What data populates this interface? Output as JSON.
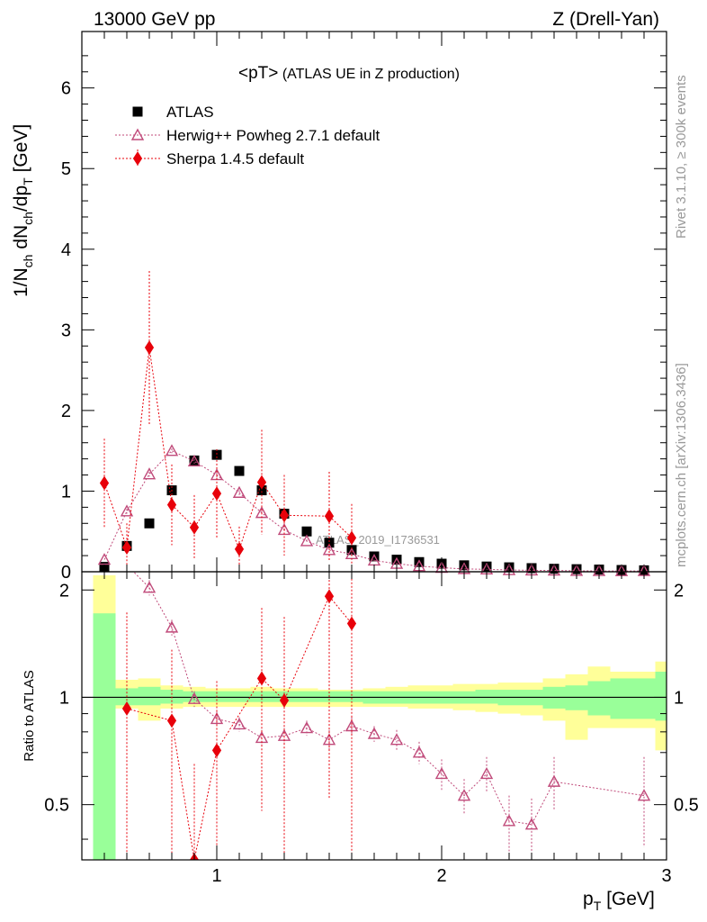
{
  "header": {
    "left": "13000 GeV pp",
    "right": "Z (Drell-Yan)"
  },
  "side_texts": {
    "rivet": "Rivet 3.1.10, ≥ 300k events",
    "mcplots": "mcplots.cern.ch [arXiv:1306.3436]"
  },
  "watermark": "ATLAS_2019_I1736531",
  "chart_data": [
    {
      "type": "scatter",
      "panel": "main",
      "title_main": "<pT>",
      "title_sub": "(ATLAS UE in Z production)",
      "ylabel": "1/Nch dNch/dpT [GeV]",
      "ylim": [
        0,
        6.7
      ],
      "xlim": [
        0.4,
        3.0
      ],
      "log_y": false,
      "grid": false,
      "legend_position": "top-left",
      "y_ticks": [
        0,
        1,
        2,
        3,
        4,
        5,
        6
      ],
      "y_tick_labels": [
        "0",
        "1",
        "2",
        "3",
        "4",
        "5",
        "6"
      ],
      "series": [
        {
          "name": "ATLAS",
          "color": "#000000",
          "marker": "square",
          "x": [
            0.5,
            0.6,
            0.7,
            0.8,
            0.9,
            1.0,
            1.1,
            1.2,
            1.3,
            1.4,
            1.5,
            1.6,
            1.7,
            1.8,
            1.9,
            2.0,
            2.1,
            2.2,
            2.3,
            2.4,
            2.5,
            2.6,
            2.7,
            2.8,
            2.9
          ],
          "y": [
            0.06,
            0.32,
            0.6,
            1.01,
            1.38,
            1.45,
            1.25,
            1.01,
            0.72,
            0.5,
            0.36,
            0.27,
            0.19,
            0.15,
            0.12,
            0.1,
            0.08,
            0.065,
            0.055,
            0.045,
            0.037,
            0.032,
            0.027,
            0.022,
            0.018
          ]
        },
        {
          "name": "Herwig++ Powheg 2.7.1 default",
          "color": "#c04a7a",
          "marker": "open-triangle",
          "x": [
            0.5,
            0.6,
            0.7,
            0.8,
            0.9,
            1.0,
            1.1,
            1.2,
            1.3,
            1.4,
            1.5,
            1.6,
            1.7,
            1.8,
            1.9,
            2.0,
            2.1,
            2.2,
            2.3,
            2.4,
            2.5,
            2.6,
            2.7,
            2.8,
            2.9
          ],
          "y": [
            0.15,
            0.75,
            1.21,
            1.5,
            1.37,
            1.2,
            0.98,
            0.73,
            0.52,
            0.38,
            0.27,
            0.22,
            0.14,
            0.1,
            0.07,
            0.05,
            0.035,
            0.03,
            0.022,
            0.018,
            0.016,
            0.012,
            0.01,
            0.009,
            0.01
          ],
          "err": [
            0,
            0.03,
            0.03,
            0.03,
            0.03,
            0.03,
            0.03,
            0.02,
            0.02,
            0.02,
            0.02,
            0.01,
            0.01,
            0.01,
            0.01,
            0.01,
            0.005,
            0.005,
            0.005,
            0.005,
            0.005,
            0.005,
            0.005,
            0.005,
            0.005
          ]
        },
        {
          "name": "Sherpa 1.4.5 default",
          "color": "#e8000a",
          "marker": "diamond",
          "x": [
            0.5,
            0.6,
            0.7,
            0.8,
            0.9,
            1.0,
            1.1,
            1.2,
            1.3,
            1.5,
            1.6
          ],
          "y": [
            1.1,
            0.3,
            2.78,
            0.83,
            0.55,
            0.97,
            0.28,
            1.11,
            0.7,
            0.69,
            0.42
          ],
          "err": [
            0.55,
            0.3,
            0.95,
            0.5,
            0.4,
            0.55,
            0.28,
            0.65,
            0.5,
            0.55,
            0.42
          ]
        }
      ]
    },
    {
      "type": "scatter",
      "panel": "ratio",
      "ylabel": "Ratio to ATLAS",
      "ylim": [
        0.35,
        2.25
      ],
      "xlim": [
        0.4,
        3.0
      ],
      "log_y": true,
      "xlabel": "pT [GeV]",
      "x_ticks": [
        1,
        2,
        3
      ],
      "x_tick_labels": [
        "1",
        "2",
        "3"
      ],
      "y_ticks": [
        0.5,
        1,
        2
      ],
      "y_tick_labels": [
        "0.5",
        "1",
        "2"
      ],
      "reference_line": 1,
      "bands": {
        "x_edges": [
          0.45,
          0.55,
          0.65,
          0.75,
          0.85,
          0.95,
          1.05,
          1.15,
          1.25,
          1.35,
          1.45,
          1.55,
          1.65,
          1.75,
          1.85,
          1.95,
          2.05,
          2.15,
          2.25,
          2.35,
          2.45,
          2.55,
          2.65,
          2.75,
          2.85,
          2.95
        ],
        "green_hi": [
          1.72,
          1.06,
          1.07,
          1.05,
          1.04,
          1.04,
          1.04,
          1.04,
          1.04,
          1.04,
          1.04,
          1.04,
          1.04,
          1.04,
          1.04,
          1.04,
          1.04,
          1.05,
          1.05,
          1.05,
          1.07,
          1.08,
          1.11,
          1.13,
          1.13,
          1.18
        ],
        "green_lo": [
          0.32,
          0.95,
          0.95,
          0.96,
          0.97,
          0.97,
          0.97,
          0.97,
          0.97,
          0.97,
          0.97,
          0.97,
          0.96,
          0.96,
          0.96,
          0.96,
          0.96,
          0.96,
          0.95,
          0.95,
          0.93,
          0.92,
          0.89,
          0.87,
          0.87,
          0.86
        ],
        "yellow_hi": [
          2.2,
          1.12,
          1.13,
          1.08,
          1.07,
          1.06,
          1.06,
          1.07,
          1.06,
          1.06,
          1.05,
          1.05,
          1.06,
          1.07,
          1.08,
          1.08,
          1.09,
          1.09,
          1.1,
          1.1,
          1.13,
          1.16,
          1.22,
          1.18,
          1.18,
          1.26
        ],
        "yellow_lo": [
          0.32,
          0.93,
          0.86,
          0.93,
          0.94,
          0.94,
          0.94,
          0.94,
          0.94,
          0.94,
          0.94,
          0.94,
          0.94,
          0.94,
          0.93,
          0.93,
          0.92,
          0.91,
          0.9,
          0.89,
          0.86,
          0.76,
          0.82,
          0.82,
          0.82,
          0.71
        ]
      },
      "series": [
        {
          "name": "Herwig++ Powheg 2.7.1 default",
          "color": "#c04a7a",
          "marker": "open-triangle",
          "x": [
            0.6,
            0.7,
            0.8,
            0.9,
            1.0,
            1.1,
            1.2,
            1.3,
            1.4,
            1.5,
            1.6,
            1.7,
            1.8,
            1.9,
            2.0,
            2.1,
            2.2,
            2.3,
            2.4,
            2.5,
            2.9
          ],
          "y": [
            2.35,
            2.03,
            1.57,
            0.99,
            0.87,
            0.84,
            0.77,
            0.78,
            0.82,
            0.76,
            0.83,
            0.79,
            0.76,
            0.7,
            0.61,
            0.53,
            0.61,
            0.45,
            0.44,
            0.58,
            0.53
          ],
          "err": [
            0.2,
            0.1,
            0.08,
            0.05,
            0.04,
            0.04,
            0.04,
            0.04,
            0.04,
            0.05,
            0.05,
            0.04,
            0.05,
            0.05,
            0.06,
            0.06,
            0.07,
            0.08,
            0.08,
            0.1,
            0.15
          ]
        },
        {
          "name": "Sherpa 1.4.5 default",
          "color": "#e8000a",
          "marker": "diamond",
          "x": [
            0.6,
            0.8,
            0.9,
            1.0,
            1.2,
            1.3,
            1.5,
            1.6
          ],
          "y": [
            0.93,
            0.86,
            0.35,
            0.71,
            1.13,
            0.98,
            1.92,
            1.61
          ],
          "err": [
            0.8,
            0.5,
            0.3,
            0.4,
            0.65,
            0.7,
            1.4,
            1.3
          ]
        }
      ]
    }
  ]
}
